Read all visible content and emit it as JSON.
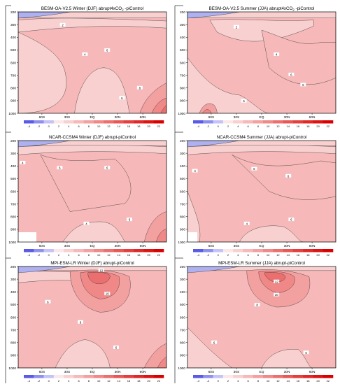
{
  "chart_data": [
    {
      "type": "heatmap",
      "title": "BESM-OA-V2.5 Winter (DJF) abrupt4xCO",
      "title_sub": "2",
      "title_tail": " -piControl",
      "y_ticks": [
        200,
        300,
        400,
        500,
        600,
        700,
        800,
        900,
        1000
      ],
      "x_ticks": [
        "60S",
        "30S",
        "EQ",
        "30N",
        "60N"
      ],
      "ylim": [
        200,
        1000
      ],
      "contour_labels": [
        "2",
        "4",
        "6",
        "6",
        "8"
      ],
      "colorbar_ticks": [
        "-4",
        "-2",
        "0",
        "2",
        "4",
        "6",
        "8",
        "10",
        "12",
        "14",
        "16",
        "18",
        "20",
        "22"
      ]
    },
    {
      "type": "heatmap",
      "title": "BESM-OA-V2.5 Summer (JJA) abrupt4xCO",
      "title_sub": "2",
      "title_tail": " -piControl",
      "y_ticks": [
        200,
        300,
        400,
        500,
        600,
        700,
        800,
        900,
        1000
      ],
      "x_ticks": [
        "60S",
        "30S",
        "EQ",
        "30N",
        "60N"
      ],
      "ylim": [
        200,
        1000
      ],
      "contour_labels": [
        "2",
        "4",
        "6",
        "6",
        "6"
      ],
      "colorbar_ticks": [
        "-4",
        "-2",
        "0",
        "2",
        "4",
        "6",
        "8",
        "10",
        "12",
        "14",
        "16",
        "18",
        "20",
        "22"
      ]
    },
    {
      "type": "heatmap",
      "title": "NCAR-CCSM4 Winter (DJF) abrupt-piControl",
      "y_ticks": [
        200,
        300,
        400,
        500,
        600,
        700,
        800,
        900,
        1000
      ],
      "x_ticks": [
        "60S",
        "30S",
        "EQ",
        "30N",
        "60N"
      ],
      "ylim": [
        200,
        1000
      ],
      "contour_labels": [
        "4",
        "6",
        "6",
        "4",
        "6"
      ],
      "colorbar_ticks": [
        "-4",
        "-2",
        "0",
        "2",
        "4",
        "6",
        "8",
        "10",
        "12",
        "14",
        "16",
        "18",
        "20",
        "22"
      ]
    },
    {
      "type": "heatmap",
      "title": "NCAR-CCSM4 Summer (JJA) abrupt-piControl",
      "y_ticks": [
        200,
        300,
        400,
        500,
        600,
        700,
        800,
        900,
        1000
      ],
      "x_ticks": [
        "60S",
        "30S",
        "EQ",
        "30N",
        "60N"
      ],
      "ylim": [
        200,
        1000
      ],
      "contour_labels": [
        "4",
        "6",
        "6",
        "4",
        "6"
      ],
      "colorbar_ticks": [
        "-4",
        "-2",
        "0",
        "2",
        "4",
        "6",
        "8",
        "10",
        "12",
        "14",
        "16",
        "18",
        "20",
        "22"
      ]
    },
    {
      "type": "heatmap",
      "title": "MPI-ESM-LR Winter (DJF) abrupt-piControl",
      "y_ticks": [
        200,
        300,
        400,
        500,
        600,
        700,
        800,
        900,
        1000
      ],
      "x_ticks": [
        "60S",
        "30S",
        "EQ",
        "30N",
        "60N"
      ],
      "ylim": [
        200,
        1000
      ],
      "contour_labels": [
        "12",
        "10",
        "6",
        "8",
        "6"
      ],
      "colorbar_ticks": [
        "-4",
        "-2",
        "0",
        "2",
        "4",
        "6",
        "8",
        "10",
        "12",
        "14",
        "16",
        "18",
        "20",
        "22"
      ]
    },
    {
      "type": "heatmap",
      "title": "MPI-ESM-LR Summer (JJA) abrupt-piControl",
      "y_ticks": [
        200,
        300,
        400,
        500,
        600,
        700,
        800,
        900,
        1000
      ],
      "x_ticks": [
        "60S",
        "30S",
        "EQ",
        "30N",
        "60N"
      ],
      "ylim": [
        200,
        1000
      ],
      "contour_labels": [
        "12",
        "10",
        "8",
        "6",
        "6"
      ],
      "colorbar_ticks": [
        "-4",
        "-2",
        "0",
        "2",
        "4",
        "6",
        "8",
        "10",
        "12",
        "14",
        "16",
        "18",
        "20",
        "22"
      ]
    }
  ],
  "colorbar": {
    "values": [
      -4,
      -2,
      0,
      2,
      4,
      6,
      8,
      10,
      12,
      14,
      16,
      18,
      20,
      22
    ],
    "colors": [
      "#5a5ae6",
      "#8f8ff0",
      "#c3c3f7",
      "#fce8e8",
      "#f9d0d0",
      "#f6b8b8",
      "#f3a0a0",
      "#f08888",
      "#ec6f6f",
      "#e85656",
      "#e43e3e",
      "#e02828",
      "#dc1414",
      "#d80000"
    ]
  }
}
